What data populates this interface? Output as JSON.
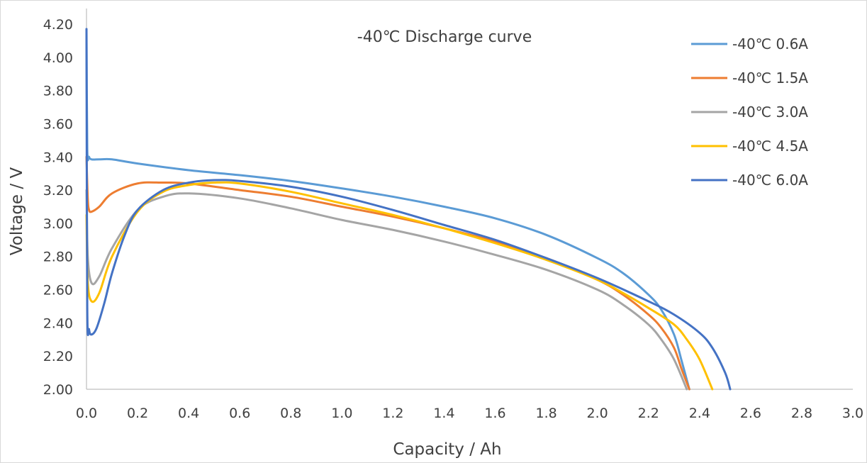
{
  "chart_data": {
    "type": "line",
    "title": "-40℃ Discharge curve",
    "xlabel": "Capacity / Ah",
    "ylabel": "Voltage / V",
    "xlim": [
      0,
      3.0
    ],
    "ylim": [
      2.0,
      4.2
    ],
    "x_ticks": [
      "0.0",
      "0.2",
      "0.4",
      "0.6",
      "0.8",
      "1.0",
      "1.2",
      "1.4",
      "1.6",
      "1.8",
      "2.0",
      "2.2",
      "2.4",
      "2.6",
      "2.8",
      "3.0"
    ],
    "y_ticks": [
      "2.00",
      "2.20",
      "2.40",
      "2.60",
      "2.80",
      "3.00",
      "3.20",
      "3.40",
      "3.60",
      "3.80",
      "4.00",
      "4.20"
    ],
    "grid": false,
    "legend_position": "top-right",
    "series": [
      {
        "name": "-40℃ 0.6A",
        "color": "#5B9BD5",
        "points": [
          [
            0,
            4.17
          ],
          [
            0.003,
            3.45
          ],
          [
            0.01,
            3.4
          ],
          [
            0.02,
            3.385
          ],
          [
            0.05,
            3.385
          ],
          [
            0.1,
            3.385
          ],
          [
            0.2,
            3.36
          ],
          [
            0.4,
            3.32
          ],
          [
            0.6,
            3.29
          ],
          [
            0.8,
            3.255
          ],
          [
            1.0,
            3.21
          ],
          [
            1.2,
            3.16
          ],
          [
            1.4,
            3.1
          ],
          [
            1.6,
            3.03
          ],
          [
            1.8,
            2.93
          ],
          [
            2.0,
            2.79
          ],
          [
            2.1,
            2.7
          ],
          [
            2.2,
            2.57
          ],
          [
            2.25,
            2.48
          ],
          [
            2.3,
            2.33
          ],
          [
            2.33,
            2.17
          ],
          [
            2.36,
            2.0
          ]
        ]
      },
      {
        "name": "-40℃ 1.5A",
        "color": "#ED7D31",
        "points": [
          [
            0,
            3.4
          ],
          [
            0.005,
            3.15
          ],
          [
            0.01,
            3.08
          ],
          [
            0.02,
            3.07
          ],
          [
            0.05,
            3.1
          ],
          [
            0.1,
            3.18
          ],
          [
            0.2,
            3.24
          ],
          [
            0.3,
            3.245
          ],
          [
            0.4,
            3.24
          ],
          [
            0.6,
            3.2
          ],
          [
            0.8,
            3.16
          ],
          [
            1.0,
            3.1
          ],
          [
            1.2,
            3.04
          ],
          [
            1.4,
            2.97
          ],
          [
            1.6,
            2.89
          ],
          [
            1.8,
            2.79
          ],
          [
            2.0,
            2.66
          ],
          [
            2.1,
            2.57
          ],
          [
            2.2,
            2.45
          ],
          [
            2.25,
            2.37
          ],
          [
            2.3,
            2.25
          ],
          [
            2.33,
            2.12
          ],
          [
            2.36,
            2.0
          ]
        ]
      },
      {
        "name": "-40℃ 3.0A",
        "color": "#A5A5A5",
        "points": [
          [
            0,
            3.2
          ],
          [
            0.005,
            2.8
          ],
          [
            0.02,
            2.64
          ],
          [
            0.05,
            2.68
          ],
          [
            0.1,
            2.85
          ],
          [
            0.2,
            3.08
          ],
          [
            0.3,
            3.16
          ],
          [
            0.4,
            3.18
          ],
          [
            0.6,
            3.15
          ],
          [
            0.8,
            3.09
          ],
          [
            1.0,
            3.02
          ],
          [
            1.2,
            2.96
          ],
          [
            1.4,
            2.89
          ],
          [
            1.6,
            2.81
          ],
          [
            1.8,
            2.72
          ],
          [
            2.0,
            2.6
          ],
          [
            2.1,
            2.51
          ],
          [
            2.2,
            2.39
          ],
          [
            2.25,
            2.3
          ],
          [
            2.3,
            2.18
          ],
          [
            2.35,
            2.0
          ]
        ]
      },
      {
        "name": "-40℃ 4.5A",
        "color": "#FFC000",
        "points": [
          [
            0,
            3.05
          ],
          [
            0.005,
            2.65
          ],
          [
            0.02,
            2.53
          ],
          [
            0.05,
            2.58
          ],
          [
            0.1,
            2.8
          ],
          [
            0.2,
            3.07
          ],
          [
            0.3,
            3.19
          ],
          [
            0.4,
            3.23
          ],
          [
            0.5,
            3.245
          ],
          [
            0.6,
            3.24
          ],
          [
            0.8,
            3.19
          ],
          [
            1.0,
            3.12
          ],
          [
            1.2,
            3.05
          ],
          [
            1.4,
            2.97
          ],
          [
            1.6,
            2.88
          ],
          [
            1.8,
            2.78
          ],
          [
            2.0,
            2.66
          ],
          [
            2.1,
            2.58
          ],
          [
            2.2,
            2.49
          ],
          [
            2.3,
            2.39
          ],
          [
            2.35,
            2.3
          ],
          [
            2.4,
            2.18
          ],
          [
            2.45,
            2.0
          ]
        ]
      },
      {
        "name": "-40℃ 6.0A",
        "color": "#4472C4",
        "points": [
          [
            0,
            4.17
          ],
          [
            0.003,
            2.5
          ],
          [
            0.01,
            2.36
          ],
          [
            0.02,
            2.33
          ],
          [
            0.04,
            2.37
          ],
          [
            0.07,
            2.52
          ],
          [
            0.1,
            2.7
          ],
          [
            0.15,
            2.93
          ],
          [
            0.2,
            3.08
          ],
          [
            0.3,
            3.2
          ],
          [
            0.4,
            3.245
          ],
          [
            0.5,
            3.26
          ],
          [
            0.6,
            3.255
          ],
          [
            0.8,
            3.22
          ],
          [
            1.0,
            3.16
          ],
          [
            1.2,
            3.08
          ],
          [
            1.4,
            2.99
          ],
          [
            1.6,
            2.9
          ],
          [
            1.8,
            2.79
          ],
          [
            2.0,
            2.67
          ],
          [
            2.2,
            2.53
          ],
          [
            2.3,
            2.45
          ],
          [
            2.4,
            2.34
          ],
          [
            2.45,
            2.25
          ],
          [
            2.5,
            2.1
          ],
          [
            2.52,
            2.0
          ]
        ]
      }
    ]
  }
}
